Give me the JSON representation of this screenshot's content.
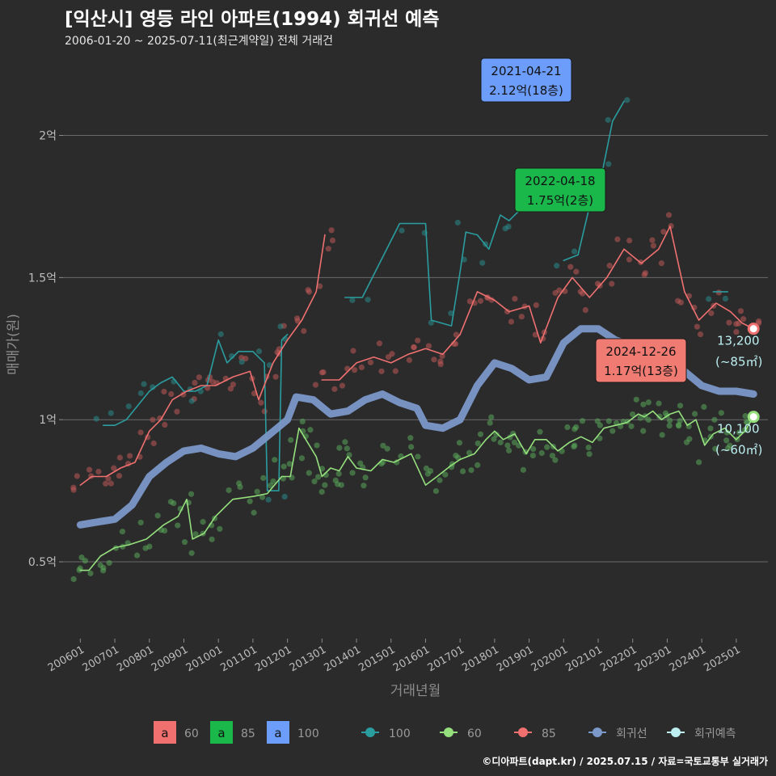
{
  "chart_data": {
    "type": "line",
    "title": "[익산시] 영등 라인 아파트(1994) 회귀선 예측",
    "subtitle": "2006-01-20 ~ 2025-07-11(최근계약일) 전체 거래건",
    "xlabel": "거래년월",
    "ylabel": "매매가(원)",
    "x_range": [
      "2005-07",
      "2025-12"
    ],
    "ylim": [
      0.23,
      2.3
    ],
    "y_ticks": [
      {
        "value": 0.5,
        "label": "0.5억"
      },
      {
        "value": 1.0,
        "label": "1억"
      },
      {
        "value": 1.5,
        "label": "1.5억"
      },
      {
        "value": 2.0,
        "label": "2억"
      }
    ],
    "x_ticks": [
      "200601",
      "200701",
      "200801",
      "200901",
      "201001",
      "201101",
      "201201",
      "201301",
      "201401",
      "201501",
      "201601",
      "201701",
      "201801",
      "201901",
      "202001",
      "202101",
      "202201",
      "202301",
      "202401",
      "202501"
    ],
    "grid": true,
    "series": [
      {
        "name": "100",
        "color": "#2a9d9f",
        "points": [
          [
            "2006-09",
            0.98
          ],
          [
            "2007-01",
            0.98
          ],
          [
            "2007-05",
            1.0
          ],
          [
            "2007-09",
            1.05
          ],
          [
            "2008-01",
            1.1
          ],
          [
            "2008-05",
            1.13
          ],
          [
            "2008-09",
            1.15
          ],
          [
            "2009-01",
            1.1
          ],
          [
            "2009-05",
            1.1
          ],
          [
            "2009-09",
            1.12
          ],
          [
            "2010-01",
            1.28
          ],
          [
            "2010-04",
            1.2
          ],
          [
            "2010-08",
            1.24
          ],
          [
            "2011-01",
            1.24
          ],
          [
            "2011-05",
            1.2
          ],
          [
            "2011-06",
            0.75
          ],
          [
            "2011-10",
            0.75
          ],
          [
            "2011-11",
            1.28
          ],
          [
            "2012-01",
            1.3
          ],
          [
            "2013-09",
            1.43
          ],
          [
            "2014-03",
            1.43
          ],
          [
            "2015-04",
            1.69
          ],
          [
            "2016-01",
            1.69
          ],
          [
            "2016-03",
            1.35
          ],
          [
            "2016-10",
            1.33
          ],
          [
            "2017-01",
            1.52
          ],
          [
            "2017-03",
            1.66
          ],
          [
            "2017-07",
            1.65
          ],
          [
            "2017-11",
            1.6
          ],
          [
            "2018-03",
            1.72
          ],
          [
            "2018-06",
            1.7
          ],
          [
            "2018-09",
            1.73
          ],
          [
            "2020-01",
            1.56
          ],
          [
            "2020-06",
            1.58
          ],
          [
            "2020-10",
            1.75
          ],
          [
            "2021-01",
            1.8
          ],
          [
            "2021-03",
            1.9
          ],
          [
            "2021-06",
            2.05
          ],
          [
            "2021-10",
            2.12
          ],
          [
            "2024-05",
            1.45
          ],
          [
            "2024-10",
            1.45
          ]
        ]
      },
      {
        "name": "60",
        "color": "#95e07d",
        "points": [
          [
            "2006-01",
            0.47
          ],
          [
            "2006-04",
            0.47
          ],
          [
            "2006-08",
            0.52
          ],
          [
            "2007-01",
            0.55
          ],
          [
            "2007-06",
            0.56
          ],
          [
            "2007-12",
            0.58
          ],
          [
            "2008-06",
            0.63
          ],
          [
            "2008-11",
            0.66
          ],
          [
            "2009-02",
            0.72
          ],
          [
            "2009-04",
            0.58
          ],
          [
            "2009-08",
            0.6
          ],
          [
            "2009-12",
            0.66
          ],
          [
            "2010-06",
            0.72
          ],
          [
            "2011-01",
            0.73
          ],
          [
            "2011-06",
            0.74
          ],
          [
            "2011-11",
            0.8
          ],
          [
            "2012-02",
            0.8
          ],
          [
            "2012-05",
            0.97
          ],
          [
            "2012-08",
            0.92
          ],
          [
            "2012-11",
            0.87
          ],
          [
            "2013-01",
            0.8
          ],
          [
            "2013-04",
            0.83
          ],
          [
            "2013-07",
            0.82
          ],
          [
            "2013-10",
            0.87
          ],
          [
            "2014-01",
            0.83
          ],
          [
            "2014-06",
            0.82
          ],
          [
            "2014-10",
            0.86
          ],
          [
            "2015-02",
            0.85
          ],
          [
            "2015-08",
            0.88
          ],
          [
            "2016-01",
            0.77
          ],
          [
            "2016-05",
            0.8
          ],
          [
            "2016-10",
            0.84
          ],
          [
            "2017-01",
            0.86
          ],
          [
            "2017-06",
            0.88
          ],
          [
            "2017-10",
            0.93
          ],
          [
            "2018-01",
            0.96
          ],
          [
            "2018-04",
            0.93
          ],
          [
            "2018-08",
            0.95
          ],
          [
            "2018-12",
            0.88
          ],
          [
            "2019-03",
            0.93
          ],
          [
            "2019-07",
            0.93
          ],
          [
            "2019-11",
            0.89
          ],
          [
            "2020-03",
            0.92
          ],
          [
            "2020-07",
            0.94
          ],
          [
            "2020-11",
            0.92
          ],
          [
            "2021-03",
            0.97
          ],
          [
            "2021-07",
            0.98
          ],
          [
            "2021-11",
            0.99
          ],
          [
            "2022-03",
            1.02
          ],
          [
            "2022-05",
            1.01
          ],
          [
            "2022-08",
            1.03
          ],
          [
            "2022-11",
            1.0
          ],
          [
            "2023-02",
            1.02
          ],
          [
            "2023-05",
            1.03
          ],
          [
            "2023-08",
            0.98
          ],
          [
            "2023-11",
            1.0
          ],
          [
            "2024-02",
            0.91
          ],
          [
            "2024-05",
            0.95
          ],
          [
            "2024-09",
            0.97
          ],
          [
            "2025-01",
            0.93
          ],
          [
            "2025-04",
            0.96
          ],
          [
            "2025-07",
            1.01
          ]
        ]
      },
      {
        "name": "85",
        "color": "#f07070",
        "points": [
          [
            "2006-01",
            0.77
          ],
          [
            "2006-05",
            0.8
          ],
          [
            "2006-10",
            0.8
          ],
          [
            "2007-03",
            0.83
          ],
          [
            "2007-08",
            0.85
          ],
          [
            "2008-01",
            0.96
          ],
          [
            "2008-05",
            1.0
          ],
          [
            "2008-09",
            1.07
          ],
          [
            "2009-02",
            1.1
          ],
          [
            "2009-07",
            1.12
          ],
          [
            "2009-12",
            1.12
          ],
          [
            "2010-06",
            1.15
          ],
          [
            "2010-12",
            1.17
          ],
          [
            "2011-03",
            1.07
          ],
          [
            "2011-08",
            1.2
          ],
          [
            "2012-01",
            1.28
          ],
          [
            "2012-06",
            1.35
          ],
          [
            "2012-11",
            1.45
          ],
          [
            "2013-02",
            1.65
          ],
          [
            "2013-01",
            1.14
          ],
          [
            "2013-07",
            1.14
          ],
          [
            "2014-01",
            1.2
          ],
          [
            "2014-07",
            1.22
          ],
          [
            "2015-01",
            1.2
          ],
          [
            "2015-07",
            1.23
          ],
          [
            "2016-01",
            1.25
          ],
          [
            "2016-07",
            1.23
          ],
          [
            "2017-01",
            1.3
          ],
          [
            "2017-07",
            1.45
          ],
          [
            "2018-01",
            1.42
          ],
          [
            "2018-06",
            1.38
          ],
          [
            "2019-01",
            1.4
          ],
          [
            "2019-05",
            1.27
          ],
          [
            "2019-11",
            1.43
          ],
          [
            "2020-04",
            1.5
          ],
          [
            "2020-10",
            1.43
          ],
          [
            "2021-04",
            1.5
          ],
          [
            "2021-10",
            1.6
          ],
          [
            "2022-04",
            1.55
          ],
          [
            "2022-10",
            1.6
          ],
          [
            "2023-02",
            1.68
          ],
          [
            "2023-07",
            1.45
          ],
          [
            "2023-12",
            1.35
          ],
          [
            "2024-06",
            1.41
          ],
          [
            "2024-11",
            1.38
          ],
          [
            "2025-03",
            1.34
          ],
          [
            "2025-07",
            1.32
          ]
        ]
      },
      {
        "name": "회귀선",
        "color": "#7b98c8",
        "points": [
          [
            "2006-01",
            0.63
          ],
          [
            "2007-01",
            0.65
          ],
          [
            "2007-07",
            0.7
          ],
          [
            "2008-01",
            0.8
          ],
          [
            "2008-07",
            0.85
          ],
          [
            "2009-01",
            0.89
          ],
          [
            "2009-07",
            0.9
          ],
          [
            "2010-01",
            0.88
          ],
          [
            "2010-07",
            0.87
          ],
          [
            "2011-01",
            0.9
          ],
          [
            "2011-07",
            0.95
          ],
          [
            "2012-01",
            1.0
          ],
          [
            "2012-04",
            1.08
          ],
          [
            "2012-10",
            1.07
          ],
          [
            "2013-04",
            1.02
          ],
          [
            "2013-10",
            1.03
          ],
          [
            "2014-04",
            1.07
          ],
          [
            "2014-10",
            1.09
          ],
          [
            "2015-04",
            1.06
          ],
          [
            "2015-10",
            1.04
          ],
          [
            "2016-01",
            0.98
          ],
          [
            "2016-07",
            0.97
          ],
          [
            "2017-01",
            1.0
          ],
          [
            "2017-07",
            1.12
          ],
          [
            "2018-01",
            1.2
          ],
          [
            "2018-07",
            1.18
          ],
          [
            "2019-01",
            1.14
          ],
          [
            "2019-07",
            1.15
          ],
          [
            "2020-01",
            1.27
          ],
          [
            "2020-07",
            1.32
          ],
          [
            "2021-01",
            1.32
          ],
          [
            "2021-07",
            1.28
          ],
          [
            "2022-01",
            1.26
          ],
          [
            "2022-07",
            1.24
          ],
          [
            "2023-01",
            1.22
          ],
          [
            "2023-07",
            1.17
          ],
          [
            "2024-01",
            1.12
          ],
          [
            "2024-07",
            1.1
          ],
          [
            "2025-01",
            1.1
          ],
          [
            "2025-07",
            1.09
          ]
        ]
      }
    ],
    "scatter_colors": {
      "60": "#5aa85a",
      "85": "#c05858",
      "100": "#2a8a8c"
    },
    "callouts": [
      {
        "date": "2021-04-21",
        "value": "2.12억(18층)",
        "color": "#6c9dfa"
      },
      {
        "date": "2022-04-18",
        "value": "1.75억(2층)",
        "color": "#1ab84a"
      },
      {
        "date": "2024-12-26",
        "value": "1.17억(13층)",
        "color": "#f07b73"
      }
    ],
    "predictions": [
      {
        "price": "13,200",
        "area": "(~85㎡)",
        "y": 1.32,
        "color": "#f07070"
      },
      {
        "price": "10,100",
        "area": "(~60㎡)",
        "y": 1.01,
        "color": "#95e07d"
      }
    ],
    "legend_placement": "bottom",
    "legend_boxes": [
      {
        "letter": "a",
        "label": "60",
        "color": "#f07070"
      },
      {
        "letter": "a",
        "label": "85",
        "color": "#1ab84a"
      },
      {
        "letter": "a",
        "label": "100",
        "color": "#6c9dfa"
      }
    ],
    "legend_lines": [
      {
        "label": "100",
        "color": "#2a9d9f"
      },
      {
        "label": "60",
        "color": "#95e07d"
      },
      {
        "label": "85",
        "color": "#f07070"
      },
      {
        "label": "회귀선",
        "color": "#7b98c8"
      },
      {
        "label": "회귀예측",
        "color": "#bdeff0"
      }
    ]
  },
  "footer": "©디아파트(dapt.kr) / 2025.07.15 / 자료=국토교통부 실거래가"
}
